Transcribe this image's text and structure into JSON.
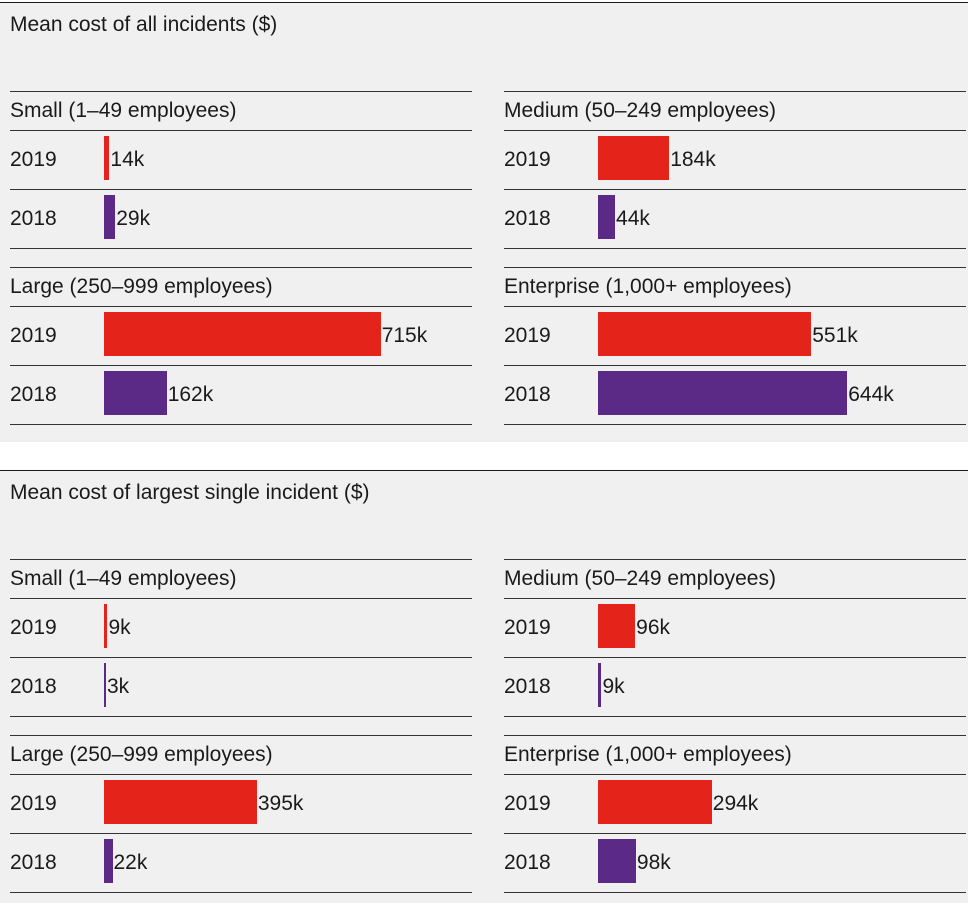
{
  "colors": {
    "y2019": "#e4231a",
    "y2018": "#5b2a86"
  },
  "chart_data": [
    {
      "type": "bar",
      "title": "Mean cost of all incidents ($)",
      "categories": [
        "2019",
        "2018"
      ],
      "groups": [
        {
          "name": "Small (1–49 employees)",
          "values": [
            14,
            29
          ],
          "labels": [
            "14k",
            "29k"
          ]
        },
        {
          "name": "Medium (50–249 employees)",
          "values": [
            184,
            44
          ],
          "labels": [
            "184k",
            "44k"
          ]
        },
        {
          "name": "Large (250–999 employees)",
          "values": [
            715,
            162
          ],
          "labels": [
            "715k",
            "162k"
          ]
        },
        {
          "name": "Enterprise (1,000+ employees)",
          "values": [
            551,
            644
          ],
          "labels": [
            "551k",
            "644k"
          ]
        }
      ]
    },
    {
      "type": "bar",
      "title": "Mean cost of largest single incident ($)",
      "categories": [
        "2019",
        "2018"
      ],
      "groups": [
        {
          "name": "Small (1–49 employees)",
          "values": [
            9,
            3
          ],
          "labels": [
            "9k",
            "3k"
          ]
        },
        {
          "name": "Medium (50–249 employees)",
          "values": [
            96,
            9
          ],
          "labels": [
            "96k",
            "9k"
          ]
        },
        {
          "name": "Large (250–999 employees)",
          "values": [
            395,
            22
          ],
          "labels": [
            "395k",
            "22k"
          ]
        },
        {
          "name": "Enterprise (1,000+ employees)",
          "values": [
            294,
            98
          ],
          "labels": [
            "294k",
            "98k"
          ]
        }
      ]
    }
  ]
}
